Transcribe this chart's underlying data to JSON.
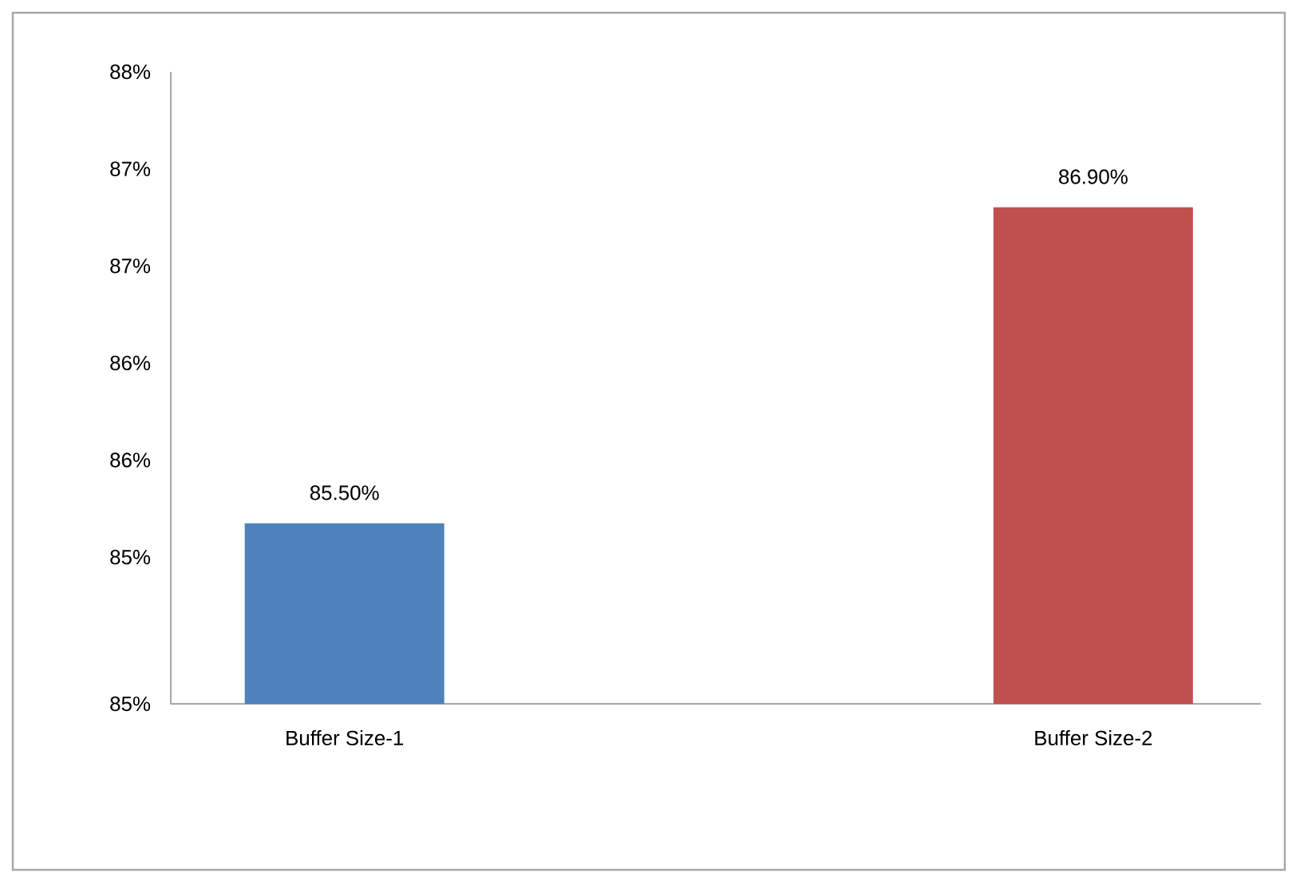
{
  "chart_data": {
    "type": "bar",
    "categories": [
      "Buffer Size-1",
      "Buffer Size-2"
    ],
    "values": [
      85.5,
      86.9
    ],
    "colors": [
      "#4f81bd",
      "#c0504d"
    ],
    "value_labels": [
      "85.50%",
      "86.90%"
    ],
    "ylim": [
      84.7,
      87.5
    ],
    "yticks": [
      {
        "value": 84.7,
        "label": "85%"
      },
      {
        "value": 85.35,
        "label": "85%"
      },
      {
        "value": 85.78,
        "label": "86%"
      },
      {
        "value": 86.21,
        "label": "86%"
      },
      {
        "value": 86.64,
        "label": "87%"
      },
      {
        "value": 87.07,
        "label": "87%"
      },
      {
        "value": 87.5,
        "label": "88%"
      }
    ],
    "grid": false
  }
}
